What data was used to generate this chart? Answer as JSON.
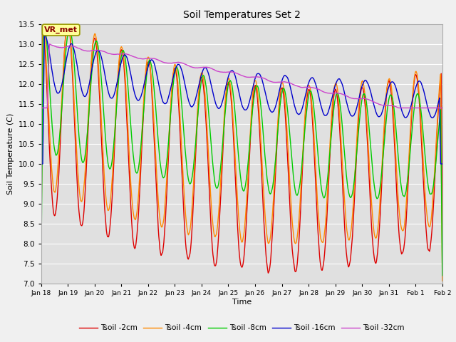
{
  "title": "Soil Temperatures Set 2",
  "xlabel": "Time",
  "ylabel": "Soil Temperature (C)",
  "ylim": [
    7.0,
    13.5
  ],
  "yticks": [
    7.0,
    7.5,
    8.0,
    8.5,
    9.0,
    9.5,
    10.0,
    10.5,
    11.0,
    11.5,
    12.0,
    12.5,
    13.0,
    13.5
  ],
  "x_tick_labels": [
    "Jan 18",
    "Jan 19",
    "Jan 20",
    "Jan 21",
    "Jan 22",
    "Jan 23",
    "Jan 24",
    "Jan 25",
    "Jan 26",
    "Jan 27",
    "Jan 28",
    "Jan 29",
    "Jan 30",
    "Jan 31",
    "Feb 1",
    "Feb 2"
  ],
  "annotation_text": "VR_met",
  "series_colors": {
    "Tsoil -2cm": "#dd0000",
    "Tsoil -4cm": "#ff8800",
    "Tsoil -8cm": "#00cc00",
    "Tsoil -16cm": "#0000cc",
    "Tsoil -32cm": "#cc44cc"
  },
  "bg_color": "#e0e0e0",
  "fig_bg": "#f0f0f0",
  "grid_color": "#ffffff",
  "n_points": 720
}
